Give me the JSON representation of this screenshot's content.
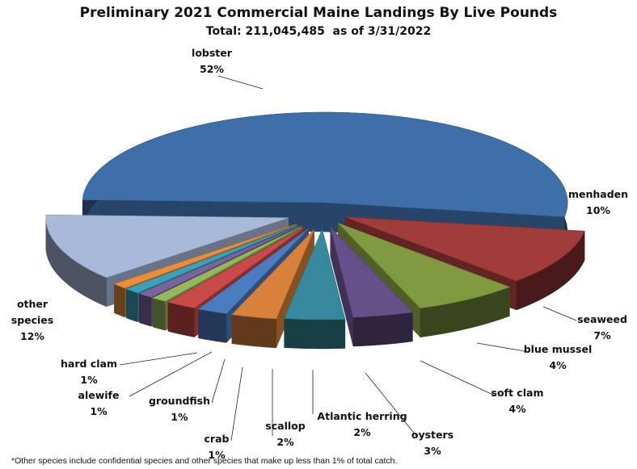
{
  "chart_data": {
    "type": "pie",
    "title": "Preliminary 2021 Commercial Maine Landings By Live Pounds",
    "subtitle": "Total: 211,045,485  as of 3/31/2022",
    "footnote": "*Other species include confidential species and other species that make up less than 1% of total catch.",
    "slices": [
      {
        "id": "lobster",
        "name_lines": [
          "lobster"
        ],
        "pct_label": "52%",
        "value": 52,
        "color": "#3f6fa8"
      },
      {
        "id": "menhaden",
        "name_lines": [
          "menhaden"
        ],
        "pct_label": "10%",
        "value": 10,
        "color": "#a03c3a"
      },
      {
        "id": "seaweed",
        "name_lines": [
          "seaweed"
        ],
        "pct_label": "7%",
        "value": 7,
        "color": "#7f9a3f"
      },
      {
        "id": "blue-mussel",
        "name_lines": [
          "blue mussel"
        ],
        "pct_label": "4%",
        "value": 4,
        "color": "#66508a"
      },
      {
        "id": "soft-clam",
        "name_lines": [
          "soft clam"
        ],
        "pct_label": "4%",
        "value": 4,
        "color": "#36899c"
      },
      {
        "id": "oysters",
        "name_lines": [
          "oysters"
        ],
        "pct_label": "3%",
        "value": 3,
        "color": "#d7813a"
      },
      {
        "id": "atlantic-herring",
        "name_lines": [
          "Atlantic herring"
        ],
        "pct_label": "2%",
        "value": 2,
        "color": "#4b7cc0"
      },
      {
        "id": "scallop",
        "name_lines": [
          "scallop"
        ],
        "pct_label": "2%",
        "value": 2,
        "color": "#c94a48"
      },
      {
        "id": "crab",
        "name_lines": [
          "crab"
        ],
        "pct_label": "1%",
        "value": 1,
        "color": "#96b85a"
      },
      {
        "id": "groundfish",
        "name_lines": [
          "groundfish"
        ],
        "pct_label": "1%",
        "value": 1,
        "color": "#7a64a0"
      },
      {
        "id": "alewife",
        "name_lines": [
          "alewife"
        ],
        "pct_label": "1%",
        "value": 1,
        "color": "#3aa2b8"
      },
      {
        "id": "hard-clam",
        "name_lines": [
          "hard clam"
        ],
        "pct_label": "1%",
        "value": 1,
        "color": "#ea8e3a"
      },
      {
        "id": "other-species",
        "name_lines": [
          "other",
          "species"
        ],
        "pct_label": "12%",
        "value": 12,
        "color": "#a9b9d9"
      }
    ]
  }
}
